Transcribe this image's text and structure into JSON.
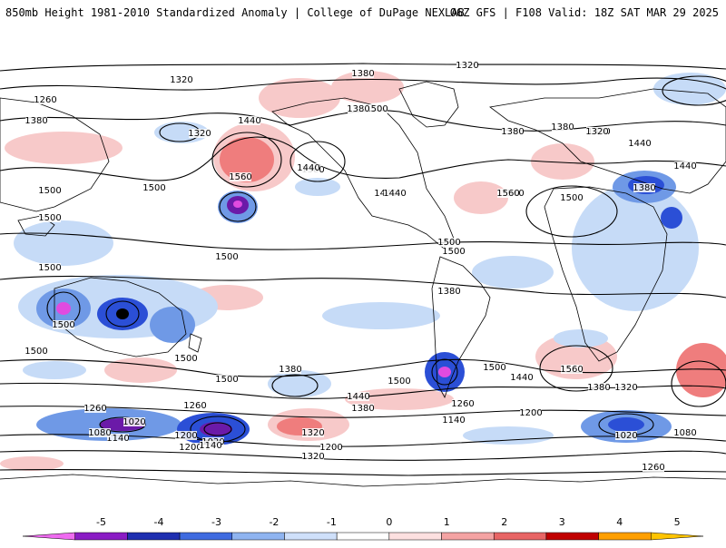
{
  "header": {
    "title": "850mb Height 1981-2010 Standardized Anomaly | College of DuPage NEXLAB",
    "run_info": "06Z GFS | F108 Valid: 18Z SAT MAR 29 2025"
  },
  "map": {
    "contour_levels": [
      "1080",
      "1140",
      "1200",
      "1260",
      "1320",
      "1380",
      "1440",
      "1500",
      "1560"
    ],
    "contour_labels": [
      "1260",
      "1320",
      "1380",
      "1440",
      "1500",
      "1560",
      "1500",
      "1380",
      "1440",
      "1560",
      "1380",
      "1440",
      "1320",
      "1500",
      "1500",
      "1500",
      "1500",
      "1500",
      "1440",
      "1320",
      "1380",
      "1200",
      "1260",
      "1140",
      "1080",
      "1020",
      "1200",
      "1140",
      "1020",
      "1320",
      "1260",
      "1380",
      "1440",
      "1320",
      "1500",
      "1380",
      "1440",
      "1200",
      "1260",
      "1200",
      "1140",
      "1020",
      "1080",
      "1260",
      "1500",
      "1560",
      "1500",
      "1380",
      "1320",
      "1440",
      "1500",
      "1500",
      "1560",
      "1380",
      "1320",
      "1380",
      "1440",
      "1380",
      "1500",
      "1500",
      "1380",
      "1440",
      "1500"
    ],
    "colors": {
      "ocean_land_bg": "#ffffff",
      "neg_1": "#c6dbf7",
      "neg_2": "#6f99e6",
      "neg_3": "#2b4fd6",
      "neg_4": "#6b1aa8",
      "neg_5": "#e04be0",
      "pos_1": "#f7c9c9",
      "pos_2": "#ef7d7d",
      "pos_3": "#d93a3a"
    }
  },
  "colorbar": {
    "ticks": [
      "-5",
      "-4",
      "-3",
      "-2",
      "-1",
      "0",
      "1",
      "2",
      "3",
      "4",
      "5"
    ],
    "colors": [
      "#ef6bf0",
      "#8a1cc4",
      "#1f2fb0",
      "#3f6be0",
      "#8fb4f0",
      "#cfe0fa",
      "#ffffff",
      "#fde0e0",
      "#f4a3a3",
      "#e86565",
      "#c00000",
      "#ff9f00",
      "#ffc400"
    ]
  }
}
